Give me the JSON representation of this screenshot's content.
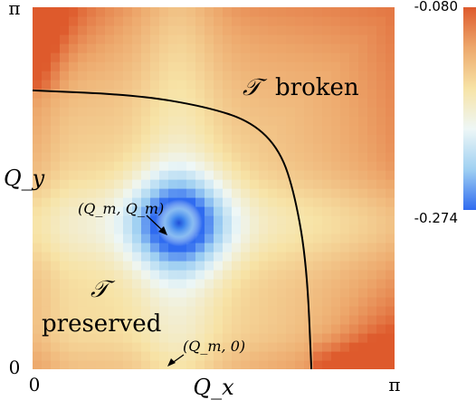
{
  "chart_data": {
    "type": "heatmap",
    "xlabel": "Q_x",
    "ylabel": "Q_y",
    "x_ticks": [
      "0",
      "π"
    ],
    "y_ticks": [
      "0",
      "π"
    ],
    "xlim": [
      0,
      3.1416
    ],
    "ylim": [
      0,
      3.1416
    ],
    "colorbar": {
      "max_label": "-0.080",
      "min_label": "-0.274",
      "range": [
        -0.274,
        -0.08
      ],
      "colors": [
        "#2f6bf0",
        "#9fd0f2",
        "#eef7f6",
        "#f7e3a6",
        "#eda86c",
        "#de5a2c"
      ]
    },
    "regions": [
      {
        "label": "broken",
        "symbol": "𝒯",
        "anchor_q": [
          2.45,
          2.75
        ]
      },
      {
        "label": "preserved",
        "symbol": "𝒯",
        "anchor_q": [
          0.62,
          0.45
        ]
      }
    ],
    "minimum": {
      "label": "(Q_m, Q_m)",
      "q": [
        1.27,
        1.27
      ]
    },
    "annotation": {
      "label": "(Q_m, 0)",
      "q": [
        1.27,
        0
      ]
    },
    "phase_boundary": [
      [
        0.0,
        2.42
      ],
      [
        0.9,
        2.38
      ],
      [
        1.5,
        2.28
      ],
      [
        1.9,
        2.15
      ],
      [
        2.15,
        1.9
      ],
      [
        2.28,
        1.5
      ],
      [
        2.38,
        0.9
      ],
      [
        2.42,
        0.0
      ]
    ]
  }
}
